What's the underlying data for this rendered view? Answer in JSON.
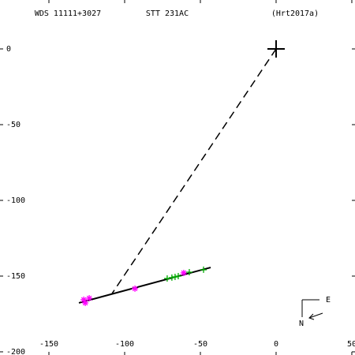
{
  "chart_data": {
    "type": "scatter",
    "title": "WDS 11111+3027",
    "subtitle": "STT 231AC",
    "reference": "(Hrt2017a)",
    "xlim": [
      -182.3,
      52.1
    ],
    "ylim": [
      -202.1,
      32.3
    ],
    "xticks": [
      -150,
      -100,
      -50,
      0,
      50
    ],
    "yticks": [
      0,
      -50,
      -100,
      -150,
      -200
    ],
    "compass": {
      "east": "E",
      "north": "N"
    },
    "series": [
      {
        "marker": "star",
        "color": "#ff00ff",
        "x": [
          -126,
          -127,
          -123.4,
          -93.2,
          -61
        ],
        "y": [
          -167.7,
          -165.6,
          -164.6,
          -158.3,
          -147.9
        ]
      },
      {
        "marker": "plus",
        "color": "#00aa00",
        "x": [
          -71.9,
          -68.8,
          -66.7,
          -64.6,
          -57.3,
          -47.9
        ],
        "y": [
          -151.6,
          -151,
          -150.5,
          -150,
          -147.4,
          -145.8
        ]
      },
      {
        "marker": "cross-large",
        "color": "#000000",
        "x": [
          0
        ],
        "y": [
          0
        ]
      }
    ],
    "fit_line": {
      "color": "#000000",
      "x": [
        -130.2,
        -43.2
      ],
      "y": [
        -167.7,
        -144.3
      ]
    },
    "node_line": {
      "color": "#000000",
      "dash": true,
      "x": [
        0,
        -108.3
      ],
      "y": [
        0,
        -161.5
      ]
    }
  }
}
